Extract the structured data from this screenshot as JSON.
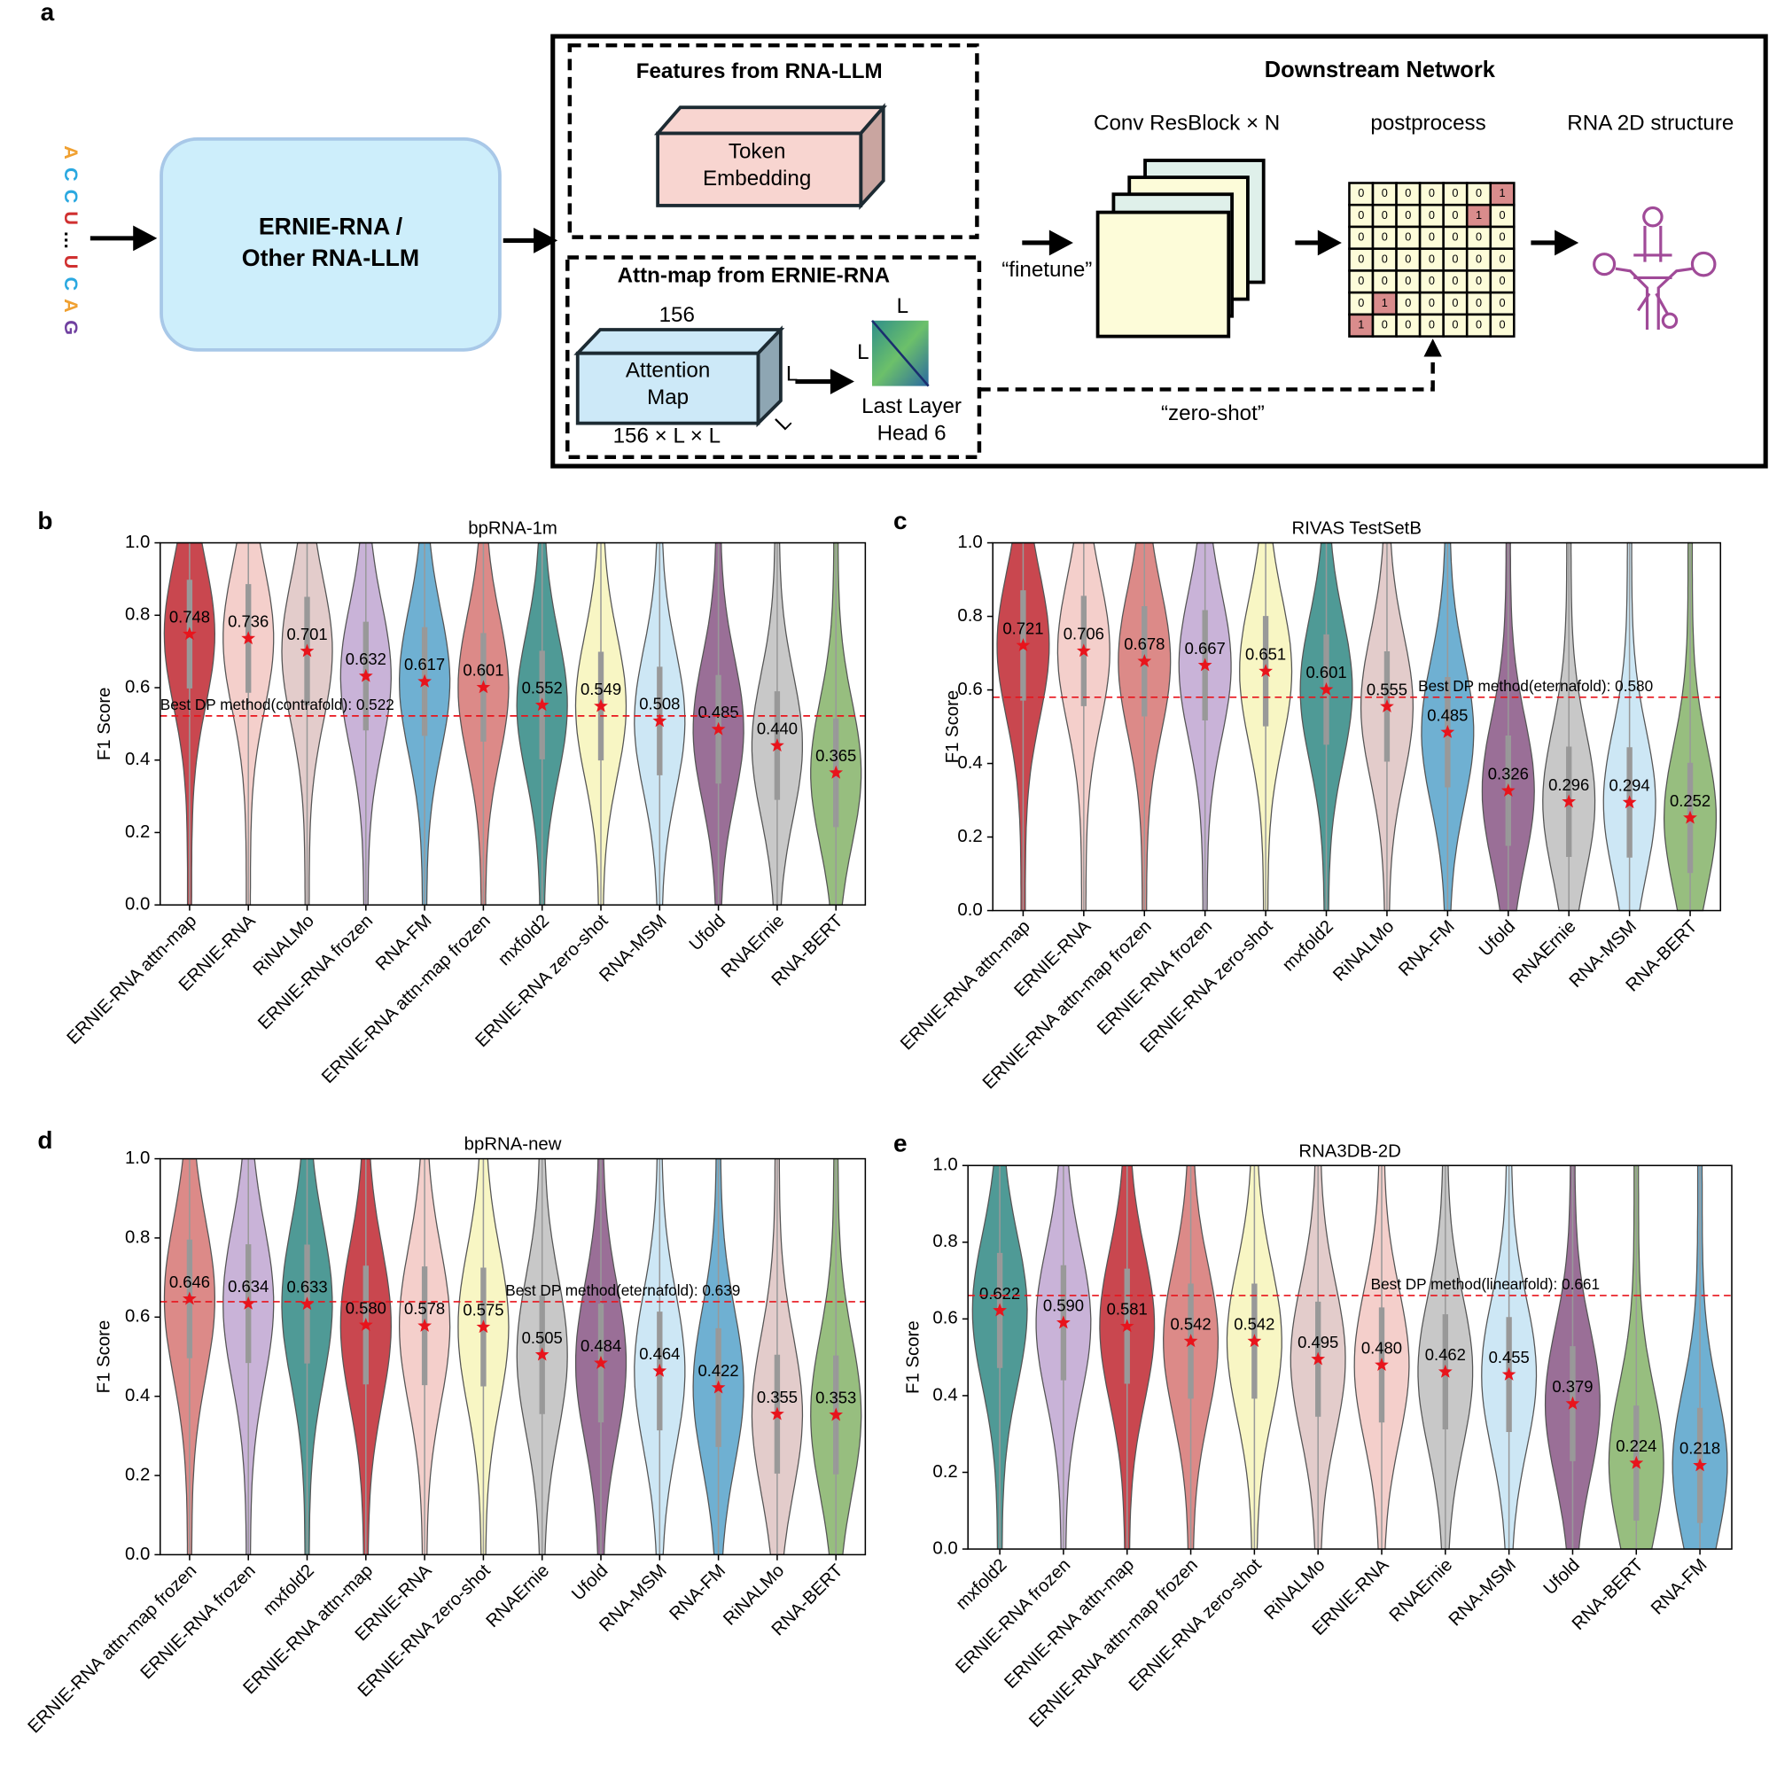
{
  "diagram": {
    "panel": "a",
    "sequence": [
      "A",
      "C",
      "C",
      "U",
      "…",
      "U",
      "C",
      "A",
      "G"
    ],
    "llm_box": [
      "ERNIE-RNA /",
      "Other RNA-LLM"
    ],
    "features_title": "Features from RNA-LLM",
    "token_embedding": [
      "Token",
      "Embedding"
    ],
    "attn_title": "Attn-map from ERNIE-RNA",
    "attn_depth": "156",
    "attention_map": [
      "Attention",
      "Map"
    ],
    "dim_l": "L",
    "attn_shape": "156 × L × L",
    "last_layer": [
      "Last Layer",
      "Head 6"
    ],
    "downstream_title": "Downstream Network",
    "conv": "Conv ResBlock × N",
    "postprocess": "postprocess",
    "structure": "RNA 2D structure",
    "finetune": "“finetune”",
    "zero_shot": "“zero-shot”",
    "matrix": [
      [
        0,
        0,
        0,
        0,
        0,
        0,
        1
      ],
      [
        0,
        0,
        0,
        0,
        0,
        1,
        0
      ],
      [
        0,
        0,
        0,
        0,
        0,
        0,
        0
      ],
      [
        0,
        0,
        0,
        0,
        0,
        0,
        0
      ],
      [
        0,
        0,
        0,
        0,
        0,
        0,
        0
      ],
      [
        0,
        1,
        0,
        0,
        0,
        0,
        0
      ],
      [
        1,
        0,
        0,
        0,
        0,
        0,
        0
      ]
    ]
  },
  "chart_data": [
    {
      "type": "violin",
      "panel": "b",
      "title": "bpRNA-1m",
      "ylabel": "F1 Score",
      "categories": [
        "ERNIE-RNA attn-map",
        "ERNIE-RNA",
        "RiNALMo",
        "ERNIE-RNA frozen",
        "RNA-FM",
        "ERNIE-RNA attn-map frozen",
        "mxfold2",
        "ERNIE-RNA zero-shot",
        "RNA-MSM",
        "Ufold",
        "RNAErnie",
        "RNA-BERT"
      ],
      "values": [
        0.748,
        0.736,
        0.701,
        0.632,
        0.617,
        0.601,
        0.552,
        0.549,
        0.508,
        0.485,
        0.44,
        0.365
      ],
      "value_labels": [
        "0.748",
        "0.736",
        "0.701",
        "0.632",
        "0.617",
        "0.601",
        "0.552",
        "0.549",
        "0.508",
        "0.485",
        "0.440",
        "0.365"
      ],
      "colors": [
        "#c9474f",
        "#f4cfcb",
        "#e3cccb",
        "#c9b3d8",
        "#6fb0d2",
        "#dc8a88",
        "#4f9a96",
        "#f8f6c4",
        "#cde7f5",
        "#9a6f97",
        "#c8c8c8",
        "#97be7f"
      ],
      "reference": {
        "value": 0.522,
        "label": "Best DP method(contrafold): 0.522"
      },
      "ylim": [
        0,
        1
      ],
      "yticks": [
        {
          "value": 0,
          "label": "0.0"
        },
        {
          "value": 0.2,
          "label": "0.2"
        },
        {
          "value": 0.4,
          "label": "0.4"
        },
        {
          "value": 0.6,
          "label": "0.6"
        },
        {
          "value": 0.8,
          "label": "0.8"
        },
        {
          "value": 1,
          "label": "1.0"
        }
      ]
    },
    {
      "type": "violin",
      "panel": "c",
      "title": "RIVAS TestSetB",
      "ylabel": "F1 Score",
      "categories": [
        "ERNIE-RNA attn-map",
        "ERNIE-RNA",
        "ERNIE-RNA attn-map frozen",
        "ERNIE-RNA frozen",
        "ERNIE-RNA zero-shot",
        "mxfold2",
        "RiNALMo",
        "RNA-FM",
        "Ufold",
        "RNAErnie",
        "RNA-MSM",
        "RNA-BERT"
      ],
      "values": [
        0.721,
        0.706,
        0.678,
        0.667,
        0.651,
        0.601,
        0.555,
        0.485,
        0.326,
        0.296,
        0.294,
        0.252
      ],
      "value_labels": [
        "0.721",
        "0.706",
        "0.678",
        "0.667",
        "0.651",
        "0.601",
        "0.555",
        "0.485",
        "0.326",
        "0.296",
        "0.294",
        "0.252"
      ],
      "colors": [
        "#c9474f",
        "#f4cfcb",
        "#dc8a88",
        "#c9b3d8",
        "#f8f6c4",
        "#4f9a96",
        "#e3cccb",
        "#6fb0d2",
        "#9a6f97",
        "#c8c8c8",
        "#cde7f5",
        "#97be7f"
      ],
      "reference": {
        "value": 0.58,
        "label": "Best DP method(eternafold): 0.580"
      },
      "ylim": [
        0,
        1
      ],
      "yticks": [
        {
          "value": 0,
          "label": "0.0"
        },
        {
          "value": 0.2,
          "label": "0.2"
        },
        {
          "value": 0.4,
          "label": "0.4"
        },
        {
          "value": 0.6,
          "label": "0.6"
        },
        {
          "value": 0.8,
          "label": "0.8"
        },
        {
          "value": 1,
          "label": "1.0"
        }
      ]
    },
    {
      "type": "violin",
      "panel": "d",
      "title": "bpRNA-new",
      "ylabel": "F1 Score",
      "categories": [
        "ERNIE-RNA attn-map frozen",
        "ERNIE-RNA frozen",
        "mxfold2",
        "ERNIE-RNA attn-map",
        "ERNIE-RNA",
        "ERNIE-RNA zero-shot",
        "RNAErnie",
        "Ufold",
        "RNA-MSM",
        "RNA-FM",
        "RiNALMo",
        "RNA-BERT"
      ],
      "values": [
        0.646,
        0.634,
        0.633,
        0.58,
        0.578,
        0.575,
        0.505,
        0.484,
        0.464,
        0.422,
        0.355,
        0.353
      ],
      "value_labels": [
        "0.646",
        "0.634",
        "0.633",
        "0.580",
        "0.578",
        "0.575",
        "0.505",
        "0.484",
        "0.464",
        "0.422",
        "0.355",
        "0.353"
      ],
      "colors": [
        "#dc8a88",
        "#c9b3d8",
        "#4f9a96",
        "#c9474f",
        "#f4cfcb",
        "#f8f6c4",
        "#c8c8c8",
        "#9a6f97",
        "#cde7f5",
        "#6fb0d2",
        "#e3cccb",
        "#97be7f"
      ],
      "reference": {
        "value": 0.639,
        "label": "Best DP method(eternafold): 0.639"
      },
      "ylim": [
        0,
        1
      ],
      "yticks": [
        {
          "value": 0,
          "label": "0.0"
        },
        {
          "value": 0.2,
          "label": "0.2"
        },
        {
          "value": 0.4,
          "label": "0.4"
        },
        {
          "value": 0.6,
          "label": "0.6"
        },
        {
          "value": 0.8,
          "label": "0.8"
        },
        {
          "value": 1,
          "label": "1.0"
        }
      ]
    },
    {
      "type": "violin",
      "panel": "e",
      "title": "RNA3DB-2D",
      "ylabel": "F1 Score",
      "categories": [
        "mxfold2",
        "ERNIE-RNA frozen",
        "ERNIE-RNA attn-map",
        "ERNIE-RNA attn-map frozen",
        "ERNIE-RNA zero-shot",
        "RiNALMo",
        "ERNIE-RNA",
        "RNAErnie",
        "RNA-MSM",
        "Ufold",
        "RNA-BERT",
        "RNA-FM"
      ],
      "values": [
        0.622,
        0.59,
        0.581,
        0.542,
        0.542,
        0.495,
        0.48,
        0.462,
        0.455,
        0.379,
        0.224,
        0.218
      ],
      "value_labels": [
        "0.622",
        "0.590",
        "0.581",
        "0.542",
        "0.542",
        "0.495",
        "0.480",
        "0.462",
        "0.455",
        "0.379",
        "0.224",
        "0.218"
      ],
      "colors": [
        "#4f9a96",
        "#c9b3d8",
        "#c9474f",
        "#dc8a88",
        "#f8f6c4",
        "#e3cccb",
        "#f4cfcb",
        "#c8c8c8",
        "#cde7f5",
        "#9a6f97",
        "#97be7f",
        "#6fb0d2"
      ],
      "reference": {
        "value": 0.661,
        "label": "Best DP method(linearfold): 0.661"
      },
      "ylim": [
        0,
        1
      ],
      "yticks": [
        {
          "value": 0,
          "label": "0.0"
        },
        {
          "value": 0.2,
          "label": "0.2"
        },
        {
          "value": 0.4,
          "label": "0.4"
        },
        {
          "value": 0.6,
          "label": "0.6"
        },
        {
          "value": 0.8,
          "label": "0.8"
        },
        {
          "value": 1,
          "label": "1.0"
        }
      ]
    }
  ]
}
